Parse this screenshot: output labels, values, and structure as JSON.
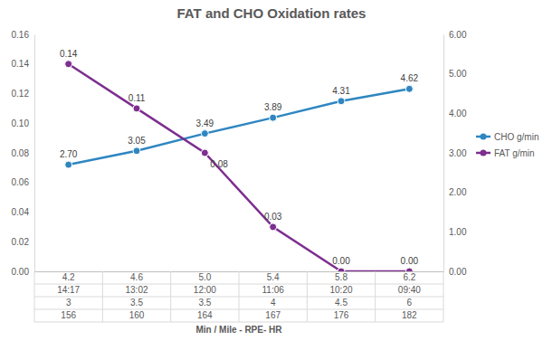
{
  "chart_data": {
    "type": "line",
    "title": "FAT and CHO Oxidation rates",
    "xlabel": "Min / Mile - RPE- HR",
    "categories": [
      [
        "4.2",
        "14:17",
        "3",
        "156"
      ],
      [
        "4.6",
        "13:02",
        "3.5",
        "160"
      ],
      [
        "5.0",
        "12:00",
        "3.5",
        "164"
      ],
      [
        "5.4",
        "11:06",
        "4",
        "167"
      ],
      [
        "5.8",
        "10:20",
        "4.5",
        "176"
      ],
      [
        "6.2",
        "09:40",
        "6",
        "182"
      ]
    ],
    "series": [
      {
        "name": "CHO g/min",
        "color": "#2e86c1",
        "axis": "y2",
        "marker": "circle",
        "line_style": "solid",
        "values": [
          2.7,
          3.05,
          3.49,
          3.89,
          4.31,
          4.62
        ],
        "value_labels": [
          "2.70",
          "3.05",
          "3.49",
          "3.89",
          "4.31",
          "4.62"
        ]
      },
      {
        "name": "FAT g/min",
        "color": "#7d2e8f",
        "marker": "circle",
        "line_style": "solid",
        "values": [
          0.14,
          0.11,
          0.08,
          0.03,
          0.0,
          0.0
        ],
        "value_labels": [
          "0.14",
          "0.11",
          "0.08",
          "0.03",
          "0.00",
          "0.00"
        ]
      }
    ],
    "ylim": [
      0,
      0.16
    ],
    "yticks": [
      {
        "value": 0,
        "label": "0.00"
      },
      {
        "value": 0.02,
        "label": "0.02"
      },
      {
        "value": 0.04,
        "label": "0.04"
      },
      {
        "value": 0.06,
        "label": "0.06"
      },
      {
        "value": 0.08,
        "label": "0.08"
      },
      {
        "value": 0.1,
        "label": "0.10"
      },
      {
        "value": 0.12,
        "label": "0.12"
      },
      {
        "value": 0.14,
        "label": "0.14"
      },
      {
        "value": 0.16,
        "label": "0.16"
      }
    ],
    "y2lim": [
      0,
      6
    ],
    "y2ticks": [
      {
        "value": 0,
        "label": "0.00"
      },
      {
        "value": 1,
        "label": "1.00"
      },
      {
        "value": 2,
        "label": "2.00"
      },
      {
        "value": 3,
        "label": "3.00"
      },
      {
        "value": 4,
        "label": "4.00"
      },
      {
        "value": 5,
        "label": "5.00"
      },
      {
        "value": 6,
        "label": "6.00"
      }
    ],
    "grid": false,
    "legend": "right",
    "data_labels": true
  }
}
